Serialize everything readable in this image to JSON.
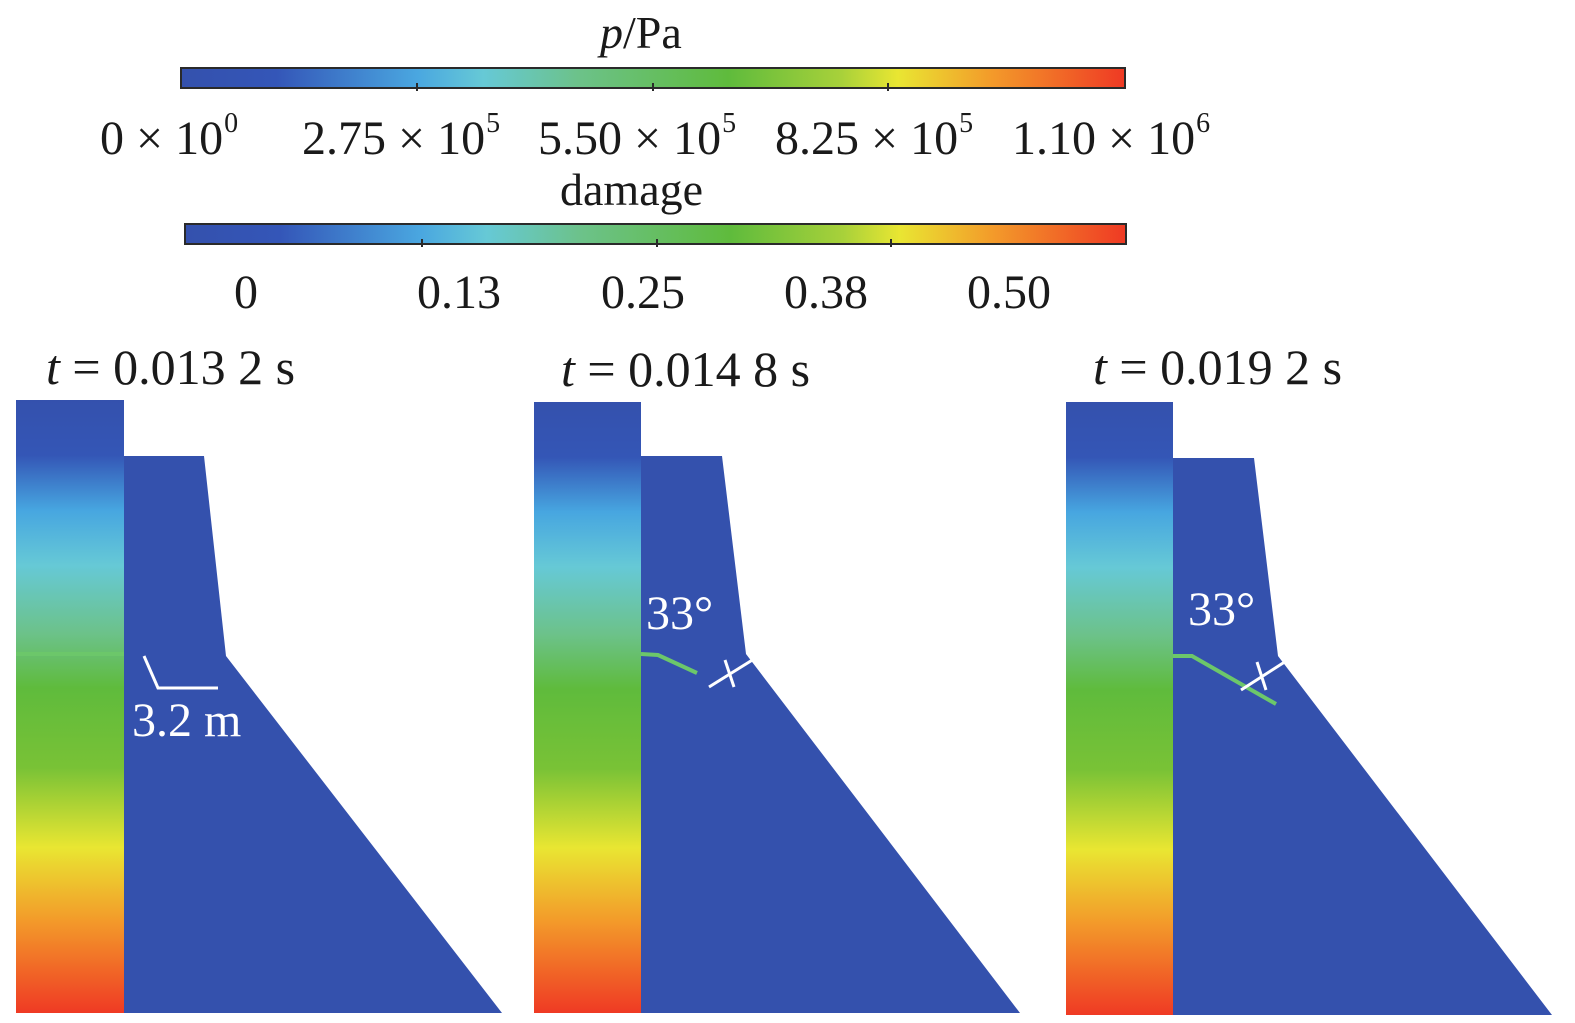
{
  "figure": {
    "pressure_colorbar": {
      "title_var": "p",
      "title_unit": "/Pa",
      "ticks": [
        {
          "mant": "0 × 10",
          "exp": "0"
        },
        {
          "mant": "2.75 × 10",
          "exp": "5"
        },
        {
          "mant": "5.50 × 10",
          "exp": "5"
        },
        {
          "mant": "8.25 × 10",
          "exp": "5"
        },
        {
          "mant": "1.10 × 10",
          "exp": "6"
        }
      ]
    },
    "damage_colorbar": {
      "title": "damage",
      "ticks": [
        "0",
        "0.13",
        "0.25",
        "0.38",
        "0.50"
      ]
    },
    "panels": [
      {
        "t_symbol": "t",
        "time_label": " = 0.013 2 s",
        "annotation": "3.2 m",
        "crack_fraction": 0.3
      },
      {
        "t_symbol": "t",
        "time_label": " = 0.014 8 s",
        "annotation": "33°",
        "crack_fraction": 0.55
      },
      {
        "t_symbol": "t",
        "time_label": " = 0.019 2 s",
        "annotation": "33°",
        "crack_fraction": 1.0
      }
    ],
    "colors": {
      "dam_blue": "#3451ad",
      "crack_green": "#6cc76a",
      "annotation_white": "#ffffff"
    }
  }
}
